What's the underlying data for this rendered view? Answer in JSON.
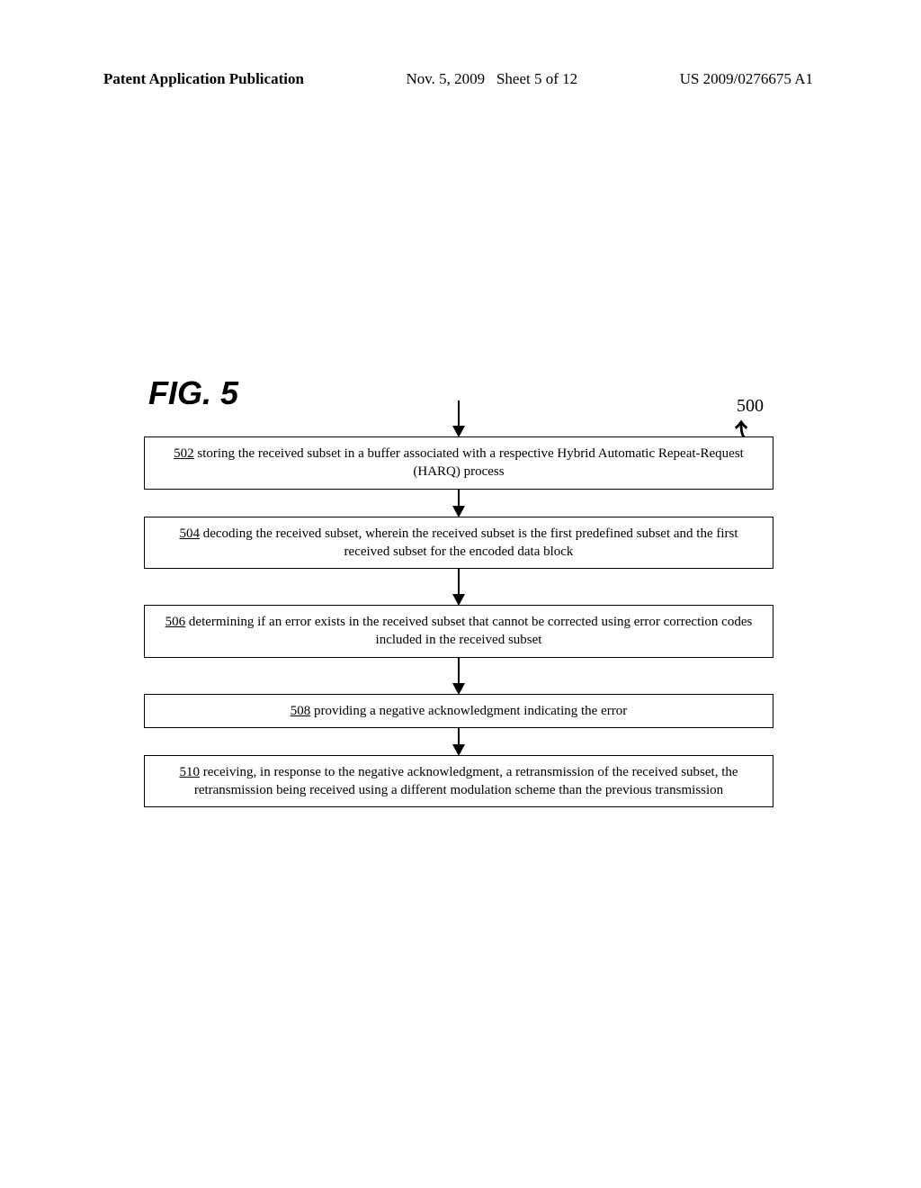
{
  "header": {
    "left": "Patent Application Publication",
    "center_date": "Nov. 5, 2009",
    "center_sheet": "Sheet 5 of 12",
    "right": "US 2009/0276675 A1"
  },
  "figure": {
    "title": "FIG. 5",
    "ref_num": "500",
    "steps": [
      {
        "num": "502",
        "text": " storing the received subset in a buffer associated with a respective Hybrid Automatic Repeat-Request (HARQ) process"
      },
      {
        "num": "504",
        "text": " decoding the received subset, wherein the received subset is the first predefined subset and the first received subset for the encoded data block"
      },
      {
        "num": "506",
        "text": " determining if an error exists in the received subset that cannot be corrected using error correction codes included in the received subset"
      },
      {
        "num": "508",
        "text": " providing a negative acknowledgment indicating the error"
      },
      {
        "num": "510",
        "text": " receiving, in response to the negative acknowledgment, a retransmission of the received subset, the retransmission being received using a different modulation scheme than the previous transmission"
      }
    ]
  }
}
